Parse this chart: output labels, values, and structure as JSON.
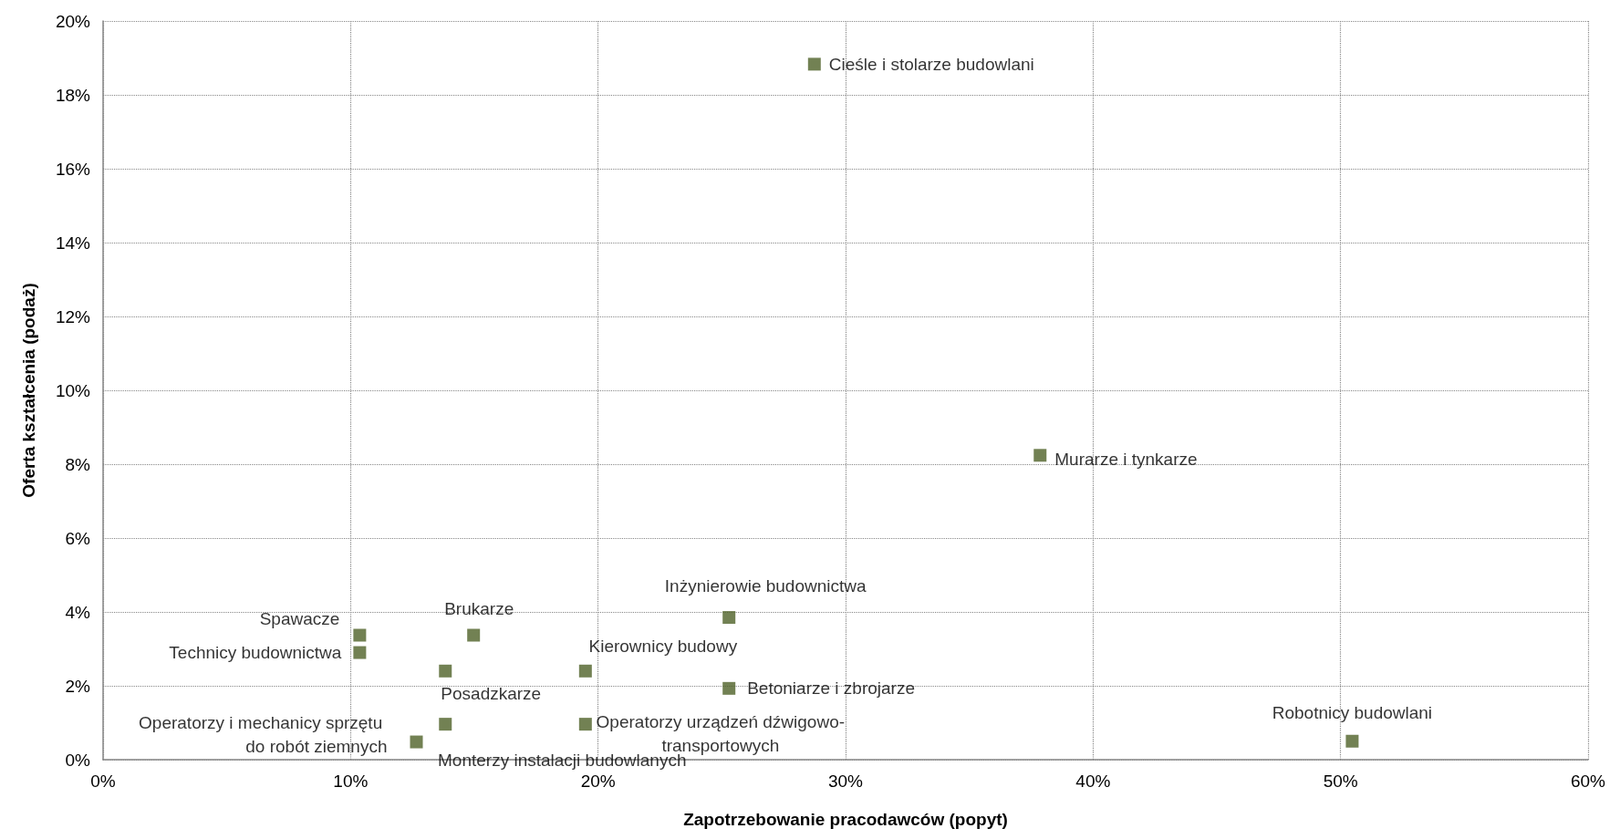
{
  "chart_data": {
    "type": "scatter",
    "xlabel": "Zapotrzebowanie pracodawców (popyt)",
    "ylabel": "Oferta kształcenia (podaż)",
    "x": [
      28.74,
      37.86,
      25.29,
      10.37,
      14.97,
      10.37,
      13.83,
      19.49,
      25.29,
      19.49,
      13.83,
      12.66,
      50.47
    ],
    "values": [
      18.83,
      8.24,
      3.85,
      3.37,
      3.37,
      2.9,
      2.4,
      2.4,
      1.93,
      0.96,
      0.96,
      0.48,
      0.5
    ],
    "value_labels": [
      "Cieśle i stolarze budowlani",
      "Murarze i tynkarze",
      "Inżynierowie budownictwa",
      "Spawacze",
      "Brukarze",
      "Technicy budownictwa",
      "Posadzkarze",
      "Kierownicy budowy",
      "Betoniarze i zbrojarze",
      "Operatorzy urządzeń dźwigowo-transportowych",
      "Monterzy instalacji budowlanych",
      "Operatorzy i mechanicy sprzętu do robót ziemnych",
      "Robotnicy budowlani"
    ],
    "color": "#4f6228",
    "marker": "square",
    "xlim": [
      0,
      60
    ],
    "xticks": [
      {
        "value": 0,
        "label": "0%"
      },
      {
        "value": 10,
        "label": "10%"
      },
      {
        "value": 20,
        "label": "20%"
      },
      {
        "value": 30,
        "label": "30%"
      },
      {
        "value": 40,
        "label": "40%"
      },
      {
        "value": 50,
        "label": "50%"
      },
      {
        "value": 60,
        "label": "60%"
      }
    ],
    "ylim": [
      0,
      20
    ],
    "yticks": [
      {
        "value": 0,
        "label": "0%"
      },
      {
        "value": 2,
        "label": "2%"
      },
      {
        "value": 4,
        "label": "4%"
      },
      {
        "value": 6,
        "label": "6%"
      },
      {
        "value": 8,
        "label": "8%"
      },
      {
        "value": 10,
        "label": "10%"
      },
      {
        "value": 12,
        "label": "12%"
      },
      {
        "value": 14,
        "label": "14%"
      },
      {
        "value": 16,
        "label": "16%"
      },
      {
        "value": 18,
        "label": "18%"
      },
      {
        "value": 20,
        "label": "20%"
      }
    ],
    "grid": true
  }
}
